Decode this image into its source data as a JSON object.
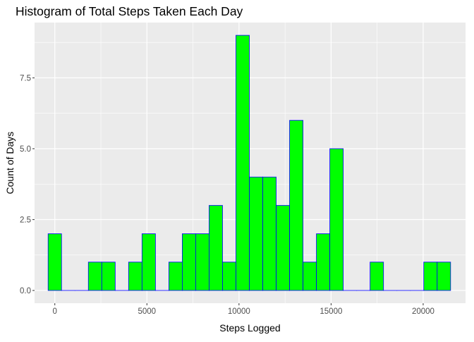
{
  "chart_data": {
    "type": "bar",
    "title": "Histogram of Total Steps Taken Each Day",
    "xlabel": "Steps Logged",
    "ylabel": "Count of Days",
    "x_ticks": [
      "0",
      "5000",
      "10000",
      "15000",
      "20000"
    ],
    "y_ticks": [
      "0.0",
      "2.5",
      "5.0",
      "7.5"
    ],
    "xlim": [
      -1100,
      22300
    ],
    "ylim": [
      -0.45,
      9.45
    ],
    "bin_width": 728.4,
    "bins": [
      {
        "x": 0,
        "count": 2
      },
      {
        "x": 728,
        "count": 0
      },
      {
        "x": 1457,
        "count": 0
      },
      {
        "x": 2185,
        "count": 1
      },
      {
        "x": 2914,
        "count": 1
      },
      {
        "x": 3642,
        "count": 0
      },
      {
        "x": 4370,
        "count": 1
      },
      {
        "x": 5099,
        "count": 2
      },
      {
        "x": 5827,
        "count": 0
      },
      {
        "x": 6556,
        "count": 1
      },
      {
        "x": 7284,
        "count": 2
      },
      {
        "x": 8012,
        "count": 2
      },
      {
        "x": 8741,
        "count": 3
      },
      {
        "x": 9469,
        "count": 1
      },
      {
        "x": 10198,
        "count": 9
      },
      {
        "x": 10926,
        "count": 4
      },
      {
        "x": 11654,
        "count": 4
      },
      {
        "x": 12383,
        "count": 3
      },
      {
        "x": 13111,
        "count": 6
      },
      {
        "x": 13840,
        "count": 1
      },
      {
        "x": 14568,
        "count": 2
      },
      {
        "x": 15296,
        "count": 5
      },
      {
        "x": 16025,
        "count": 0
      },
      {
        "x": 16753,
        "count": 0
      },
      {
        "x": 17482,
        "count": 1
      },
      {
        "x": 18210,
        "count": 0
      },
      {
        "x": 18938,
        "count": 0
      },
      {
        "x": 19667,
        "count": 0
      },
      {
        "x": 20395,
        "count": 1
      },
      {
        "x": 21124,
        "count": 1
      }
    ],
    "grid": true,
    "legend": "none",
    "colors": {
      "bar_fill": "#00ff00",
      "bar_outline": "#0000ff",
      "panel_background": "#ebebeb",
      "grid": "#ffffff",
      "tick_mark": "#333333"
    }
  }
}
